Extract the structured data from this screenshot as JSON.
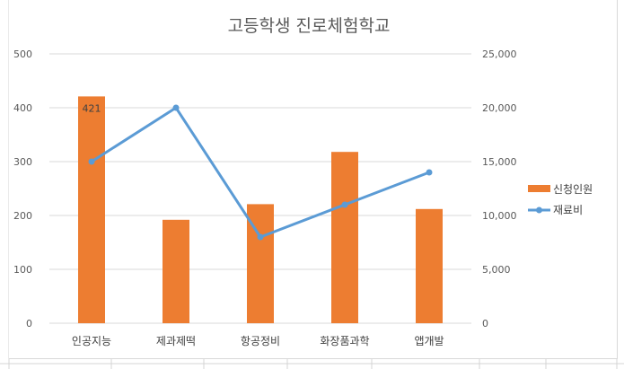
{
  "chart_data": {
    "type": "bar+line",
    "title": "고등학생 진로체험학교",
    "categories": [
      "인공지능",
      "제과제떡",
      "항공정비",
      "화장품과학",
      "앱개발"
    ],
    "series": [
      {
        "name": "신청인원",
        "type": "bar",
        "axis": "left",
        "color": "#ED7D31",
        "values": [
          421,
          192,
          221,
          318,
          212
        ]
      },
      {
        "name": "재료비",
        "type": "line",
        "axis": "right",
        "color": "#5B9BD5",
        "values": [
          15000,
          20000,
          8000,
          11000,
          14000
        ]
      }
    ],
    "y_left": {
      "min": 0,
      "max": 500,
      "ticks": [
        "0",
        "100",
        "200",
        "300",
        "400",
        "500"
      ]
    },
    "y_right": {
      "min": 0,
      "max": 25000,
      "ticks": [
        "0",
        "5,000",
        "10,000",
        "15,000",
        "20,000",
        "25,000"
      ]
    },
    "data_labels": [
      {
        "series": "신청인원",
        "category": "인공지능",
        "text": "421"
      }
    ],
    "legend_position": "right",
    "grid": true
  }
}
